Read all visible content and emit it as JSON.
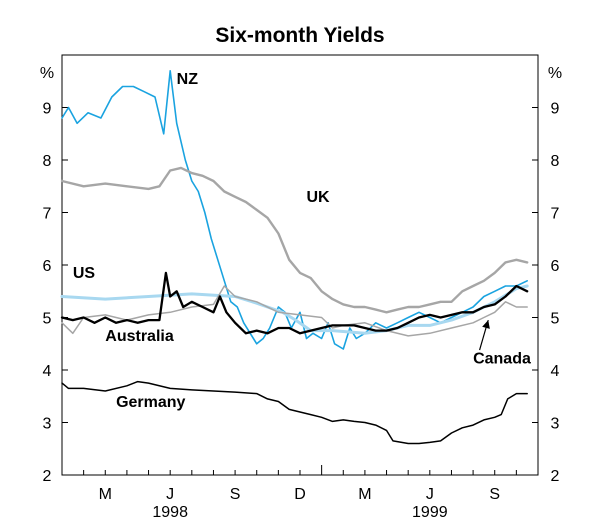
{
  "chart_data": {
    "type": "line",
    "title": "Six-month Yields",
    "y_unit_left": "%",
    "y_unit_right": "%",
    "ylim": [
      2,
      10
    ],
    "yticks": [
      2,
      3,
      4,
      5,
      6,
      7,
      8,
      9
    ],
    "xlim": [
      0,
      22
    ],
    "month_ticks": [
      {
        "label": "M",
        "x": 2
      },
      {
        "label": "J",
        "x": 5
      },
      {
        "label": "S",
        "x": 8
      },
      {
        "label": "D",
        "x": 11
      },
      {
        "label": "M",
        "x": 14
      },
      {
        "label": "J",
        "x": 17
      },
      {
        "label": "S",
        "x": 20
      }
    ],
    "year_labels": [
      {
        "label": "1998",
        "x": 5
      },
      {
        "label": "1999",
        "x": 17
      }
    ],
    "x_note": "x values are months since 1 Jan 1998",
    "series": [
      {
        "name": "NZ",
        "color": "#1aa3e0",
        "width": 1.6,
        "label": {
          "text": "NZ",
          "x": 5.3,
          "y": 9.45
        },
        "points": [
          [
            0,
            8.8
          ],
          [
            0.3,
            9
          ],
          [
            0.7,
            8.7
          ],
          [
            1.2,
            8.9
          ],
          [
            1.8,
            8.8
          ],
          [
            2.3,
            9.2
          ],
          [
            2.8,
            9.4
          ],
          [
            3.3,
            9.4
          ],
          [
            3.8,
            9.3
          ],
          [
            4.3,
            9.2
          ],
          [
            4.7,
            8.5
          ],
          [
            5,
            9.7
          ],
          [
            5.3,
            8.7
          ],
          [
            5.7,
            8
          ],
          [
            6,
            7.6
          ],
          [
            6.3,
            7.4
          ],
          [
            6.6,
            7
          ],
          [
            6.9,
            6.5
          ],
          [
            7.2,
            6.1
          ],
          [
            7.5,
            5.7
          ],
          [
            7.8,
            5.3
          ],
          [
            8.1,
            5.2
          ],
          [
            8.4,
            4.9
          ],
          [
            8.7,
            4.7
          ],
          [
            9,
            4.5
          ],
          [
            9.3,
            4.6
          ],
          [
            9.6,
            4.8
          ],
          [
            10,
            5.2
          ],
          [
            10.3,
            5.1
          ],
          [
            10.6,
            4.8
          ],
          [
            11,
            5.1
          ],
          [
            11.3,
            4.6
          ],
          [
            11.6,
            4.7
          ],
          [
            12,
            4.6
          ],
          [
            12.3,
            4.9
          ],
          [
            12.6,
            4.5
          ],
          [
            13,
            4.4
          ],
          [
            13.3,
            4.8
          ],
          [
            13.6,
            4.6
          ],
          [
            14,
            4.7
          ],
          [
            14.5,
            4.9
          ],
          [
            15,
            4.8
          ],
          [
            15.5,
            4.9
          ],
          [
            16,
            5
          ],
          [
            16.5,
            5.1
          ],
          [
            17,
            5
          ],
          [
            17.5,
            4.9
          ],
          [
            18,
            5
          ],
          [
            18.5,
            5.1
          ],
          [
            19,
            5.2
          ],
          [
            19.5,
            5.4
          ],
          [
            20,
            5.5
          ],
          [
            20.5,
            5.6
          ],
          [
            21,
            5.6
          ],
          [
            21.5,
            5.7
          ]
        ]
      },
      {
        "name": "UK",
        "color": "#a6a6a6",
        "width": 2.4,
        "label": {
          "text": "UK",
          "x": 11.3,
          "y": 7.2
        },
        "points": [
          [
            0,
            7.6
          ],
          [
            1,
            7.5
          ],
          [
            2,
            7.55
          ],
          [
            3,
            7.5
          ],
          [
            4,
            7.45
          ],
          [
            4.5,
            7.5
          ],
          [
            5,
            7.8
          ],
          [
            5.5,
            7.85
          ],
          [
            6,
            7.75
          ],
          [
            6.5,
            7.7
          ],
          [
            7,
            7.6
          ],
          [
            7.5,
            7.4
          ],
          [
            8,
            7.3
          ],
          [
            8.5,
            7.2
          ],
          [
            9,
            7.05
          ],
          [
            9.5,
            6.9
          ],
          [
            10,
            6.6
          ],
          [
            10.5,
            6.1
          ],
          [
            11,
            5.85
          ],
          [
            11.5,
            5.75
          ],
          [
            12,
            5.5
          ],
          [
            12.5,
            5.35
          ],
          [
            13,
            5.25
          ],
          [
            13.5,
            5.2
          ],
          [
            14,
            5.2
          ],
          [
            14.5,
            5.15
          ],
          [
            15,
            5.1
          ],
          [
            15.5,
            5.15
          ],
          [
            16,
            5.2
          ],
          [
            16.5,
            5.2
          ],
          [
            17,
            5.25
          ],
          [
            17.5,
            5.3
          ],
          [
            18,
            5.3
          ],
          [
            18.5,
            5.5
          ],
          [
            19,
            5.6
          ],
          [
            19.5,
            5.7
          ],
          [
            20,
            5.85
          ],
          [
            20.5,
            6.05
          ],
          [
            21,
            6.1
          ],
          [
            21.5,
            6.05
          ]
        ]
      },
      {
        "name": "US",
        "color": "#a8d8f0",
        "width": 3,
        "label": {
          "text": "US",
          "x": 0.5,
          "y": 5.75
        },
        "points": [
          [
            0,
            5.4
          ],
          [
            2,
            5.35
          ],
          [
            4,
            5.4
          ],
          [
            6,
            5.45
          ],
          [
            8,
            5.4
          ],
          [
            8.8,
            5.3
          ],
          [
            9.5,
            5.2
          ],
          [
            10.2,
            5.1
          ],
          [
            10.8,
            4.95
          ],
          [
            11.5,
            4.75
          ],
          [
            12.5,
            4.75
          ],
          [
            14,
            4.7
          ],
          [
            15,
            4.75
          ],
          [
            16,
            4.85
          ],
          [
            17,
            4.85
          ],
          [
            18,
            4.95
          ],
          [
            19,
            5.1
          ],
          [
            20,
            5.3
          ],
          [
            21,
            5.55
          ],
          [
            21.5,
            5.6
          ]
        ]
      },
      {
        "name": "Canada",
        "color": "#a6a6a6",
        "width": 1.5,
        "label": {
          "text": "Canada",
          "x": 19,
          "y": 4.12
        },
        "points": [
          [
            0,
            4.9
          ],
          [
            0.5,
            4.7
          ],
          [
            1,
            5
          ],
          [
            2,
            5.05
          ],
          [
            3,
            4.95
          ],
          [
            4,
            5.05
          ],
          [
            5,
            5.1
          ],
          [
            6,
            5.2
          ],
          [
            7,
            5.25
          ],
          [
            7.5,
            5.6
          ],
          [
            8,
            5.4
          ],
          [
            9,
            5.3
          ],
          [
            10,
            5.1
          ],
          [
            11,
            5.05
          ],
          [
            12,
            5
          ],
          [
            12.5,
            4.8
          ],
          [
            13,
            4.85
          ],
          [
            14,
            4.9
          ],
          [
            15,
            4.75
          ],
          [
            16,
            4.65
          ],
          [
            17,
            4.7
          ],
          [
            18,
            4.8
          ],
          [
            19,
            4.9
          ],
          [
            19.5,
            5
          ],
          [
            20,
            5.1
          ],
          [
            20.5,
            5.3
          ],
          [
            21,
            5.2
          ],
          [
            21.5,
            5.2
          ]
        ]
      },
      {
        "name": "Australia",
        "color": "#000000",
        "width": 2.3,
        "label": {
          "text": "Australia",
          "x": 2,
          "y": 4.55
        },
        "points": [
          [
            0,
            5
          ],
          [
            0.5,
            4.95
          ],
          [
            1,
            5
          ],
          [
            1.5,
            4.9
          ],
          [
            2,
            5
          ],
          [
            2.5,
            4.9
          ],
          [
            3,
            4.95
          ],
          [
            3.5,
            4.9
          ],
          [
            4,
            4.95
          ],
          [
            4.5,
            4.95
          ],
          [
            4.8,
            5.85
          ],
          [
            5,
            5.4
          ],
          [
            5.3,
            5.5
          ],
          [
            5.6,
            5.2
          ],
          [
            6,
            5.3
          ],
          [
            6.5,
            5.2
          ],
          [
            7,
            5.1
          ],
          [
            7.3,
            5.4
          ],
          [
            7.6,
            5.1
          ],
          [
            8,
            4.9
          ],
          [
            8.5,
            4.7
          ],
          [
            9,
            4.75
          ],
          [
            9.5,
            4.7
          ],
          [
            10,
            4.8
          ],
          [
            10.5,
            4.8
          ],
          [
            11,
            4.7
          ],
          [
            11.5,
            4.75
          ],
          [
            12,
            4.8
          ],
          [
            12.5,
            4.85
          ],
          [
            13,
            4.85
          ],
          [
            13.5,
            4.85
          ],
          [
            14,
            4.8
          ],
          [
            14.5,
            4.75
          ],
          [
            15,
            4.75
          ],
          [
            15.5,
            4.8
          ],
          [
            16,
            4.9
          ],
          [
            16.5,
            5
          ],
          [
            17,
            5.05
          ],
          [
            17.5,
            5
          ],
          [
            18,
            5.05
          ],
          [
            18.5,
            5.1
          ],
          [
            19,
            5.1
          ],
          [
            19.5,
            5.2
          ],
          [
            20,
            5.25
          ],
          [
            20.5,
            5.4
          ],
          [
            21,
            5.6
          ],
          [
            21.5,
            5.5
          ]
        ]
      },
      {
        "name": "Germany",
        "color": "#000000",
        "width": 1.5,
        "label": {
          "text": "Germany",
          "x": 2.5,
          "y": 3.3
        },
        "points": [
          [
            0,
            3.75
          ],
          [
            0.3,
            3.65
          ],
          [
            1,
            3.65
          ],
          [
            2,
            3.6
          ],
          [
            3,
            3.7
          ],
          [
            3.5,
            3.78
          ],
          [
            4,
            3.75
          ],
          [
            5,
            3.65
          ],
          [
            6,
            3.62
          ],
          [
            7,
            3.6
          ],
          [
            8,
            3.58
          ],
          [
            9,
            3.55
          ],
          [
            9.5,
            3.45
          ],
          [
            10,
            3.4
          ],
          [
            10.5,
            3.25
          ],
          [
            11,
            3.2
          ],
          [
            11.5,
            3.15
          ],
          [
            12,
            3.1
          ],
          [
            12.5,
            3.02
          ],
          [
            13,
            3.05
          ],
          [
            13.5,
            3.02
          ],
          [
            14,
            3
          ],
          [
            14.5,
            2.95
          ],
          [
            15,
            2.85
          ],
          [
            15.3,
            2.65
          ],
          [
            16,
            2.6
          ],
          [
            16.5,
            2.6
          ],
          [
            17,
            2.62
          ],
          [
            17.5,
            2.65
          ],
          [
            18,
            2.8
          ],
          [
            18.5,
            2.9
          ],
          [
            19,
            2.95
          ],
          [
            19.5,
            3.05
          ],
          [
            20,
            3.1
          ],
          [
            20.3,
            3.15
          ],
          [
            20.6,
            3.45
          ],
          [
            21,
            3.55
          ],
          [
            21.5,
            3.55
          ]
        ]
      }
    ],
    "annotation_arrow": {
      "series": "Canada",
      "from": [
        19.3,
        4.38
      ],
      "to": [
        19.7,
        4.95
      ]
    }
  }
}
